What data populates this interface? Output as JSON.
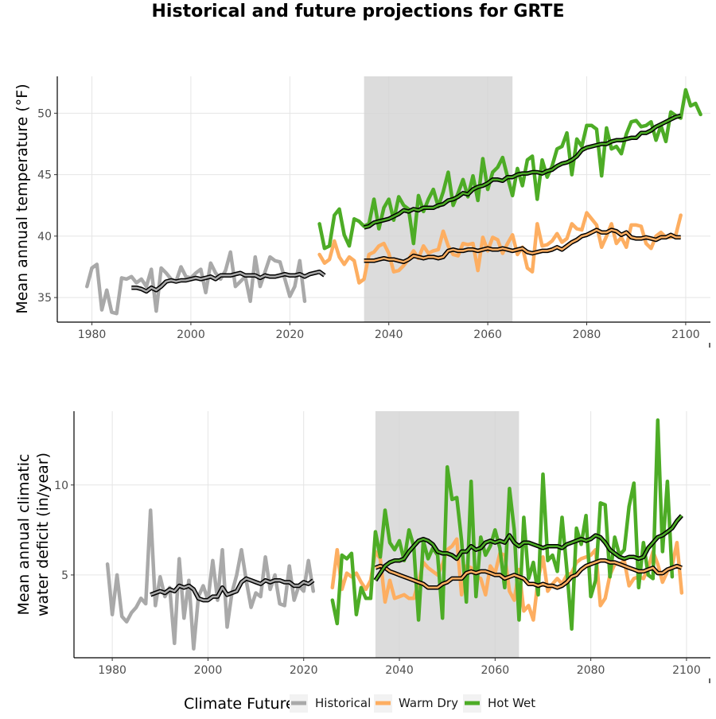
{
  "chart_data": {
    "title": "Historical and future projections for GRTE",
    "panels": [
      {
        "type": "line",
        "ylabel": [
          "Mean annual temperature (°F)"
        ],
        "xlim": [
          1973,
          2105
        ],
        "ylim": [
          33,
          53
        ],
        "xticks": [
          1980,
          2000,
          2020,
          2040,
          2060,
          2080,
          2100
        ],
        "yticks": [
          35,
          40,
          45,
          50
        ],
        "grid": true,
        "shaded_period": [
          2035,
          2065
        ],
        "series": [
          {
            "name": "Historical",
            "x_start": 1979,
            "values": [
              35.9,
              37.4,
              37.7,
              34.0,
              35.6,
              33.8,
              33.7,
              36.6,
              36.5,
              36.7,
              36.2,
              36.5,
              35.9,
              37.3,
              33.9,
              37.4,
              37.0,
              36.5,
              36.3,
              37.5,
              36.7,
              36.6,
              37.0,
              37.3,
              35.4,
              37.8,
              37.0,
              36.5,
              37.2,
              38.7,
              35.9,
              36.3,
              36.7,
              34.7,
              38.3,
              35.9,
              37.1,
              38.3,
              38.0,
              37.9,
              36.5,
              35.1,
              35.9,
              38.0,
              34.7
            ]
          },
          {
            "name": "Warm Dry",
            "x_start": 2026,
            "values": [
              38.5,
              37.8,
              38.1,
              39.6,
              38.3,
              37.7,
              38.3,
              38.0,
              36.2,
              36.5,
              38.5,
              38.7,
              39.2,
              39.4,
              38.6,
              37.1,
              37.2,
              37.6,
              38.1,
              38.8,
              38.2,
              39.2,
              38.6,
              38.8,
              38.9,
              40.4,
              39.2,
              38.5,
              38.4,
              39.4,
              39.3,
              39.4,
              37.2,
              39.9,
              38.8,
              39.9,
              39.7,
              38.6,
              39.4,
              40.1,
              38.5,
              39.1,
              37.4,
              37.1,
              41.0,
              39.2,
              39.3,
              39.6,
              40.2,
              39.5,
              39.8,
              41.0,
              40.6,
              40.5,
              41.9,
              41.4,
              40.9,
              39.1,
              40.0,
              41.0,
              39.4,
              39.9,
              39.1,
              40.9,
              40.9,
              40.8,
              39.4,
              39.0,
              40.0,
              40.3,
              39.9,
              39.9,
              40.1,
              41.7
            ]
          },
          {
            "name": "Hot Wet",
            "x_start": 2026,
            "values": [
              41.0,
              39.0,
              39.2,
              41.7,
              42.2,
              40.1,
              39.2,
              41.4,
              41.2,
              40.8,
              41.0,
              43.0,
              40.6,
              42.3,
              43.0,
              41.3,
              43.2,
              42.5,
              42.2,
              39.4,
              43.3,
              42.0,
              43.0,
              43.8,
              42.4,
              43.6,
              45.2,
              42.5,
              43.5,
              44.6,
              43.2,
              44.9,
              42.9,
              46.3,
              43.8,
              45.2,
              45.6,
              46.4,
              44.8,
              43.3,
              45.5,
              44.1,
              46.2,
              46.5,
              43.0,
              46.2,
              44.8,
              45.7,
              47.1,
              47.3,
              48.4,
              45.0,
              47.9,
              47.3,
              49.0,
              49.0,
              48.7,
              44.9,
              48.8,
              47.1,
              47.3,
              46.7,
              48.3,
              49.3,
              49.4,
              48.9,
              49.0,
              49.3,
              47.8,
              49.0,
              47.7,
              50.1,
              49.8,
              49.6,
              51.9,
              50.6,
              50.8,
              49.9
            ]
          },
          {
            "name": "Historical",
            "role": "trend",
            "x_start": 1988,
            "values": [
              35.8,
              35.8,
              35.7,
              35.5,
              35.8,
              35.6,
              35.9,
              36.3,
              36.4,
              36.3,
              36.4,
              36.4,
              36.5,
              36.6,
              36.5,
              36.6,
              36.7,
              36.5,
              36.8,
              36.8,
              36.8,
              36.9,
              37.0,
              36.8,
              36.8,
              36.8,
              36.6,
              36.8,
              36.7,
              36.7,
              36.8,
              36.9,
              36.8,
              36.8,
              36.9,
              36.7,
              36.9,
              37.0,
              37.1,
              36.8
            ]
          },
          {
            "name": "Warm Dry",
            "role": "trend",
            "x_start": 2035,
            "values": [
              38.0,
              38.0,
              38.0,
              38.1,
              38.2,
              38.1,
              38.1,
              38.0,
              37.9,
              38.1,
              38.4,
              38.3,
              38.2,
              38.3,
              38.3,
              38.2,
              38.3,
              38.8,
              38.9,
              38.8,
              38.8,
              38.9,
              38.9,
              38.8,
              38.9,
              39.0,
              38.9,
              38.9,
              39.0,
              38.9,
              38.8,
              38.9,
              39.0,
              38.7,
              38.6,
              38.7,
              38.8,
              38.8,
              38.9,
              39.1,
              38.9,
              39.2,
              39.5,
              39.7,
              40.0,
              40.1,
              40.3,
              40.5,
              40.3,
              40.3,
              40.5,
              40.4,
              40.1,
              40.3,
              39.9,
              39.8,
              39.8,
              39.9,
              39.8,
              39.7,
              39.9,
              39.9,
              40.1,
              39.9,
              39.9
            ]
          },
          {
            "name": "Hot Wet",
            "role": "trend",
            "x_start": 2035,
            "values": [
              40.7,
              40.8,
              41.1,
              41.2,
              41.3,
              41.4,
              41.6,
              41.8,
              42.1,
              42.0,
              42.2,
              42.1,
              42.3,
              42.3,
              42.3,
              42.5,
              42.6,
              42.9,
              43.0,
              43.2,
              43.5,
              43.4,
              43.8,
              44.0,
              44.1,
              44.3,
              44.6,
              44.6,
              44.5,
              44.8,
              44.8,
              45.0,
              45.1,
              45.1,
              45.2,
              45.2,
              45.1,
              45.3,
              45.4,
              45.7,
              45.9,
              46.0,
              46.2,
              46.5,
              47.0,
              47.2,
              47.3,
              47.4,
              47.5,
              47.5,
              47.7,
              47.8,
              47.8,
              47.9,
              48.0,
              48.0,
              48.4,
              48.4,
              48.6,
              48.9,
              49.1,
              49.3,
              49.5,
              49.7,
              49.8
            ]
          }
        ]
      },
      {
        "type": "line",
        "ylabel": [
          "Mean annual climatic",
          "water deficit (in/year)"
        ],
        "xlim": [
          1972,
          2105
        ],
        "ylim": [
          0.4,
          14.1
        ],
        "xticks": [
          1980,
          2000,
          2020,
          2040,
          2060,
          2080,
          2100
        ],
        "yticks": [
          5,
          10
        ],
        "grid": true,
        "shaded_period": [
          2035,
          2065
        ],
        "series": [
          {
            "name": "Historical",
            "x_start": 1979,
            "values": [
              5.6,
              2.8,
              5.0,
              2.7,
              2.4,
              2.9,
              3.2,
              3.7,
              3.4,
              8.6,
              3.3,
              4.9,
              3.8,
              4.3,
              1.2,
              5.9,
              2.6,
              4.7,
              0.9,
              3.8,
              4.4,
              3.6,
              5.8,
              3.6,
              6.4,
              2.1,
              4.0,
              5.0,
              6.4,
              4.7,
              3.2,
              4.0,
              3.8,
              6.0,
              4.2,
              5.0,
              3.4,
              3.3,
              5.5,
              3.6,
              4.4,
              4.1,
              5.8,
              4.1
            ]
          },
          {
            "name": "Warm Dry",
            "x_start": 2026,
            "values": [
              4.3,
              6.4,
              4.2,
              5.1,
              4.9,
              5.1,
              4.6,
              4.2,
              4.7,
              6.3,
              5.9,
              3.5,
              4.7,
              3.7,
              3.8,
              3.9,
              3.7,
              3.7,
              4.6,
              5.7,
              5.4,
              5.2,
              5.0,
              5.6,
              6.4,
              6.6,
              7.0,
              3.9,
              5.5,
              5.4,
              4.9,
              4.8,
              3.9,
              5.5,
              5.1,
              6.2,
              6.1,
              4.1,
              3.6,
              5.3,
              3.0,
              3.3,
              2.5,
              4.8,
              6.0,
              4.1,
              4.5,
              4.8,
              4.5,
              5.0,
              5.1,
              5.7,
              5.9,
              6.0,
              6.1,
              6.4,
              3.3,
              3.7,
              5.0,
              5.6,
              5.6,
              5.8,
              4.4,
              4.8,
              4.9,
              4.8,
              5.4,
              6.3,
              5.6,
              4.6,
              5.2,
              5.5,
              6.8,
              4.0
            ]
          },
          {
            "name": "Hot Wet",
            "x_start": 2026,
            "values": [
              3.6,
              2.3,
              6.1,
              5.9,
              6.2,
              2.8,
              4.3,
              3.7,
              3.7,
              7.4,
              6.0,
              8.6,
              6.8,
              6.4,
              6.9,
              5.8,
              7.5,
              6.6,
              2.5,
              6.9,
              5.9,
              6.5,
              6.1,
              2.6,
              11.0,
              9.2,
              9.3,
              6.9,
              3.5,
              10.2,
              3.8,
              7.1,
              6.1,
              6.6,
              7.5,
              6.5,
              4.3,
              9.8,
              7.5,
              2.5,
              8.2,
              4.8,
              5.7,
              3.9,
              10.6,
              5.8,
              6.1,
              5.2,
              8.2,
              5.3,
              2.0,
              7.6,
              6.7,
              8.3,
              3.8,
              4.7,
              9.0,
              8.9,
              4.9,
              7.1,
              6.1,
              6.4,
              8.8,
              10.1,
              4.3,
              6.8,
              5.0,
              4.8,
              13.6,
              6.3,
              10.2,
              4.9
            ]
          },
          {
            "name": "Historical",
            "role": "trend",
            "x_start": 1988,
            "values": [
              3.9,
              4.0,
              4.1,
              4.0,
              4.2,
              4.1,
              4.4,
              4.3,
              4.4,
              4.2,
              3.7,
              3.6,
              3.6,
              3.8,
              3.8,
              4.3,
              3.9,
              4.0,
              4.1,
              4.6,
              4.8,
              4.7,
              4.6,
              4.5,
              4.7,
              4.6,
              4.7,
              4.7,
              4.6,
              4.6,
              4.4,
              4.4,
              4.6,
              4.5,
              4.7
            ]
          },
          {
            "name": "Warm Dry",
            "role": "trend",
            "x_start": 2035,
            "values": [
              5.4,
              5.5,
              5.4,
              5.2,
              5.1,
              5.0,
              4.9,
              4.8,
              4.7,
              4.6,
              4.5,
              4.3,
              4.3,
              4.3,
              4.5,
              4.6,
              4.8,
              4.8,
              4.8,
              5.1,
              5.2,
              5.1,
              5.2,
              5.2,
              5.1,
              5.0,
              5.0,
              4.8,
              4.9,
              5.0,
              4.9,
              4.8,
              4.5,
              4.5,
              4.4,
              4.5,
              4.4,
              4.4,
              4.3,
              4.4,
              4.6,
              4.9,
              5.0,
              5.3,
              5.5,
              5.6,
              5.7,
              5.8,
              5.8,
              5.7,
              5.7,
              5.6,
              5.5,
              5.4,
              5.3,
              5.2,
              5.2,
              5.3,
              5.4,
              5.1,
              5.1,
              5.3,
              5.4,
              5.5,
              5.4
            ]
          },
          {
            "name": "Hot Wet",
            "role": "trend",
            "x_start": 2035,
            "values": [
              4.7,
              5.1,
              5.5,
              5.7,
              5.8,
              5.8,
              5.9,
              6.3,
              6.6,
              6.9,
              7.0,
              6.9,
              6.7,
              6.3,
              6.2,
              6.2,
              6.1,
              5.9,
              6.3,
              6.3,
              6.6,
              6.4,
              6.5,
              6.8,
              6.9,
              6.8,
              6.9,
              6.8,
              7.2,
              6.8,
              6.6,
              6.8,
              6.8,
              6.7,
              6.6,
              6.5,
              6.6,
              6.6,
              6.6,
              6.5,
              6.7,
              6.8,
              6.9,
              7.0,
              6.9,
              7.0,
              7.2,
              7.1,
              6.8,
              6.4,
              6.2,
              6.0,
              5.9,
              6.0,
              6.0,
              5.9,
              6.0,
              6.5,
              6.8,
              7.1,
              7.2,
              7.4,
              7.6,
              8.0,
              8.3
            ]
          }
        ]
      }
    ],
    "legend": {
      "title": "Climate Future",
      "placement": "bottom",
      "entries": [
        {
          "label": "Historical",
          "color": "#A9A9A9"
        },
        {
          "label": "Warm Dry",
          "color": "#FDAE61"
        },
        {
          "label": "Hot Wet",
          "color": "#4DAC26"
        }
      ]
    }
  }
}
